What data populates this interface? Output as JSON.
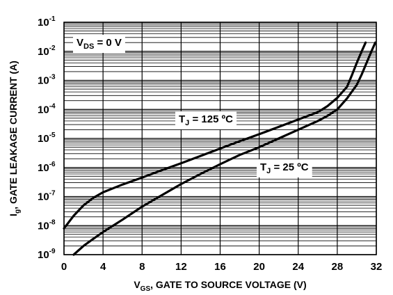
{
  "chart_data": {
    "type": "line",
    "title": "",
    "xlabel": {
      "main": "V",
      "sub": "GS",
      "rest": ", GATE TO SOURCE VOLTAGE (V)"
    },
    "ylabel": {
      "main": "I",
      "sub": "g",
      "rest": ",  GATE LEAKAGE CURRENT (A)"
    },
    "x_ticks": [
      "0",
      "4",
      "8",
      "12",
      "16",
      "20",
      "24",
      "28",
      "32"
    ],
    "y_ticks": [
      {
        "base": "10",
        "exp": "-9"
      },
      {
        "base": "10",
        "exp": "-8"
      },
      {
        "base": "10",
        "exp": "-7"
      },
      {
        "base": "10",
        "exp": "-6"
      },
      {
        "base": "10",
        "exp": "-5"
      },
      {
        "base": "10",
        "exp": "-4"
      },
      {
        "base": "10",
        "exp": "-3"
      },
      {
        "base": "10",
        "exp": "-2"
      },
      {
        "base": "10",
        "exp": "-1"
      }
    ],
    "xlim": [
      0,
      32
    ],
    "ylim": [
      1e-09,
      0.1
    ],
    "y_scale": "log",
    "grid": true,
    "annotations": {
      "vds": {
        "main": "V",
        "sub": "DS",
        "rest": " = 0 V"
      },
      "t125": {
        "main": "T",
        "sub": "J",
        "rest": " = 125 ºC"
      },
      "t25": {
        "main": "T",
        "sub": "J",
        "rest": " = 25 ºC"
      }
    },
    "series": [
      {
        "label": "TJ = 125 ºC",
        "x": [
          0,
          1,
          2,
          3,
          4,
          6,
          8,
          10,
          12,
          14,
          16,
          18,
          20,
          22,
          24,
          26,
          27,
          28,
          29,
          29.5,
          30,
          30.5,
          30.9
        ],
        "y": [
          8e-09,
          2.2e-08,
          5e-08,
          9e-08,
          1.4e-07,
          2.6e-07,
          4.5e-07,
          8e-07,
          1.4e-06,
          2.5e-06,
          4.5e-06,
          8e-06,
          1.4e-05,
          2.5e-05,
          4.5e-05,
          8e-05,
          0.00013,
          0.00025,
          0.0006,
          0.0015,
          0.004,
          0.01,
          0.02
        ]
      },
      {
        "label": "TJ = 25 ºC",
        "x": [
          1,
          2,
          3,
          4,
          6,
          8,
          10,
          12,
          14,
          16,
          18,
          20,
          22,
          24,
          26,
          27,
          28,
          29,
          30,
          30.5,
          31,
          31.5,
          31.9
        ],
        "y": [
          1e-09,
          2e-09,
          3.5e-09,
          6e-09,
          1.6e-08,
          4.5e-08,
          1.1e-07,
          2.7e-07,
          6e-07,
          1.3e-06,
          2.7e-06,
          5e-06,
          1e-05,
          2e-05,
          4e-05,
          6e-05,
          0.0001,
          0.00024,
          0.0007,
          0.0016,
          0.004,
          0.01,
          0.02
        ]
      }
    ]
  }
}
